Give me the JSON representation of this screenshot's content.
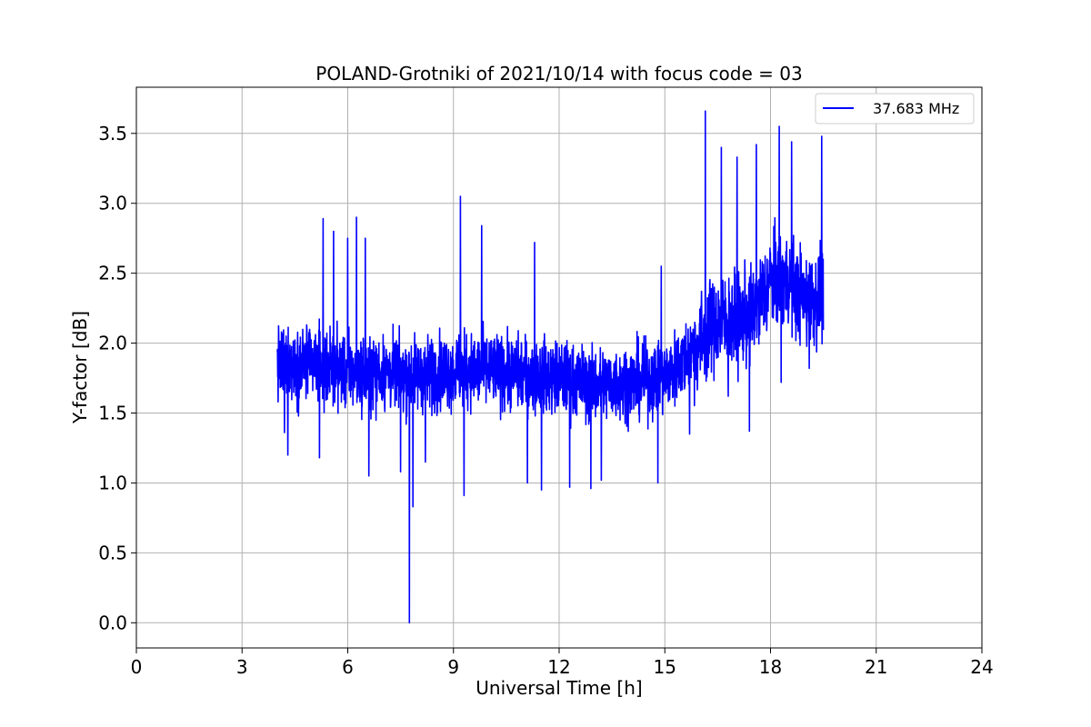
{
  "chart_data": {
    "type": "line",
    "title": "POLAND-Grotniki of 2021/10/14 with focus code = 03",
    "xlabel": "Universal Time [h]",
    "ylabel": "Y-factor [dB]",
    "xlim": [
      0,
      24
    ],
    "ylim": [
      -0.18,
      3.83
    ],
    "xticks": [
      0,
      3,
      6,
      9,
      12,
      15,
      18,
      21,
      24
    ],
    "yticks": [
      0.0,
      0.5,
      1.0,
      1.5,
      2.0,
      2.5,
      3.0,
      3.5
    ],
    "grid": true,
    "legend_position": "top-right",
    "colors": {
      "series": "#0000ff",
      "grid": "#b0b0b0",
      "axes": "#000000"
    },
    "series": [
      {
        "name": "37.683 MHz",
        "color": "#0000ff",
        "x_range": [
          4.0,
          19.5
        ],
        "baseline": [
          [
            4.0,
            1.85
          ],
          [
            5.0,
            1.85
          ],
          [
            6.0,
            1.8
          ],
          [
            7.0,
            1.78
          ],
          [
            8.0,
            1.78
          ],
          [
            9.0,
            1.8
          ],
          [
            10.0,
            1.8
          ],
          [
            11.0,
            1.78
          ],
          [
            12.0,
            1.75
          ],
          [
            13.0,
            1.7
          ],
          [
            14.0,
            1.72
          ],
          [
            15.0,
            1.75
          ],
          [
            15.8,
            1.95
          ],
          [
            16.5,
            2.15
          ],
          [
            17.0,
            2.15
          ],
          [
            17.5,
            2.2
          ],
          [
            18.0,
            2.45
          ],
          [
            18.5,
            2.45
          ],
          [
            19.0,
            2.3
          ],
          [
            19.5,
            2.35
          ]
        ],
        "peaks": [
          [
            4.2,
            2.35
          ],
          [
            5.3,
            2.89
          ],
          [
            5.6,
            2.8
          ],
          [
            6.0,
            2.75
          ],
          [
            6.25,
            2.9
          ],
          [
            6.5,
            2.75
          ],
          [
            9.2,
            3.05
          ],
          [
            9.8,
            2.84
          ],
          [
            11.3,
            2.72
          ],
          [
            14.9,
            2.55
          ],
          [
            16.15,
            3.66
          ],
          [
            16.6,
            3.4
          ],
          [
            17.05,
            3.33
          ],
          [
            17.6,
            3.42
          ],
          [
            18.25,
            3.55
          ],
          [
            18.6,
            3.44
          ],
          [
            19.45,
            3.48
          ]
        ],
        "dips": [
          [
            4.2,
            1.36
          ],
          [
            4.3,
            1.2
          ],
          [
            5.2,
            1.18
          ],
          [
            6.6,
            1.05
          ],
          [
            7.5,
            1.08
          ],
          [
            7.75,
            0.0
          ],
          [
            7.85,
            0.83
          ],
          [
            8.2,
            1.15
          ],
          [
            9.3,
            0.91
          ],
          [
            11.1,
            1.0
          ],
          [
            11.5,
            0.95
          ],
          [
            12.3,
            0.97
          ],
          [
            12.9,
            0.96
          ],
          [
            13.2,
            1.02
          ],
          [
            14.8,
            1.0
          ],
          [
            15.7,
            1.35
          ],
          [
            16.8,
            1.62
          ],
          [
            17.4,
            1.37
          ],
          [
            18.3,
            1.72
          ],
          [
            19.1,
            1.82
          ]
        ]
      }
    ]
  }
}
